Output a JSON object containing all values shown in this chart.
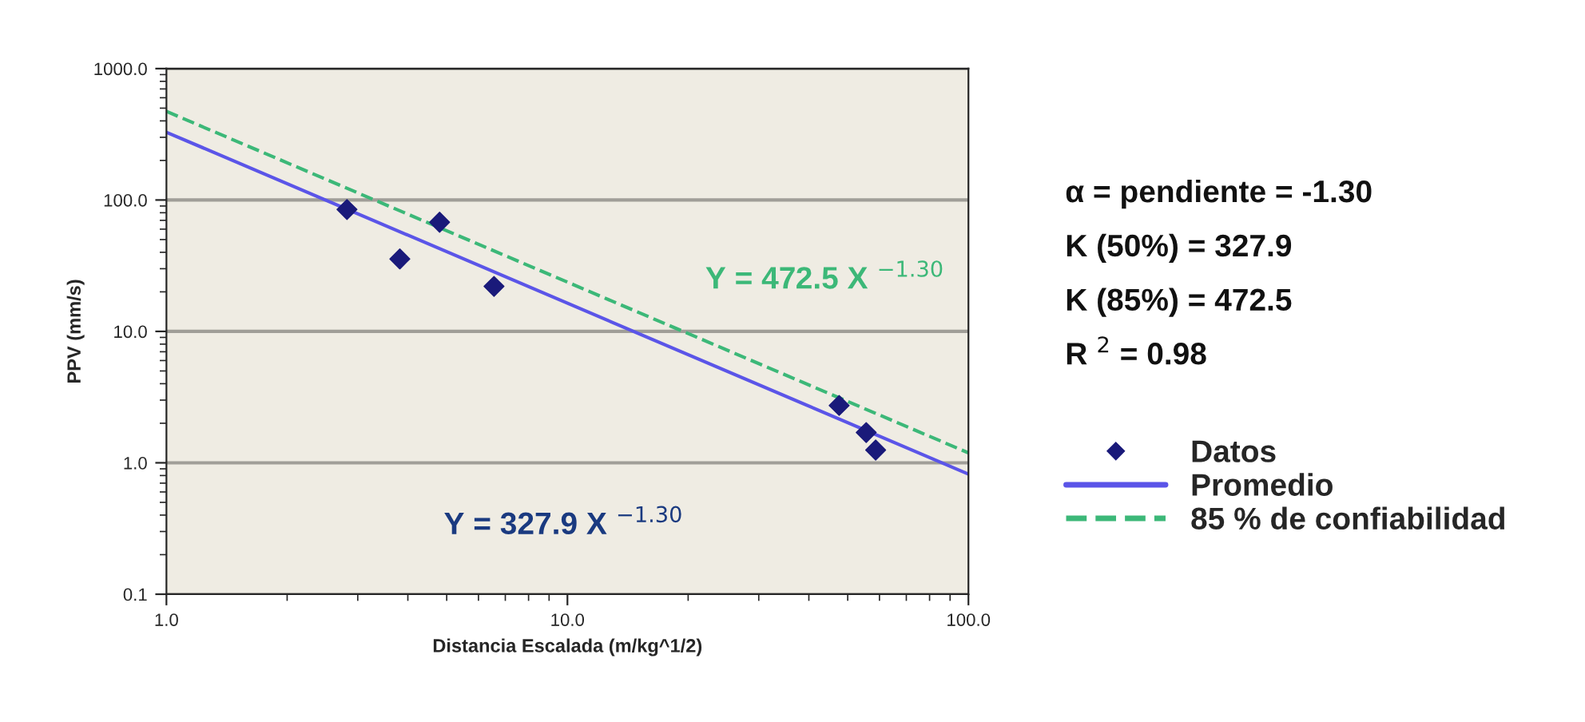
{
  "chart_data": {
    "type": "scatter",
    "xlabel": "Distancia Escalada (m/kg^1/2)",
    "ylabel": "PPV (mm/s)",
    "log": "xy",
    "grid": "y",
    "legend": "right",
    "xlim": [
      1,
      100
    ],
    "ylim": [
      0.1,
      1000
    ],
    "xticks": [
      {
        "value": 1,
        "label": "1.0"
      },
      {
        "value": 10,
        "label": "10.0"
      },
      {
        "value": 100,
        "label": "100.0"
      }
    ],
    "yticks": [
      {
        "value": 0.1,
        "label": "0.1"
      },
      {
        "value": 1,
        "label": "1.0"
      },
      {
        "value": 10,
        "label": "10.0"
      },
      {
        "value": 100,
        "label": "100.0"
      },
      {
        "value": 1000,
        "label": "1000.0"
      }
    ],
    "series": [
      {
        "name": "Datos",
        "marker": "diamond",
        "color": "#1a1a7a",
        "x": [
          2.82,
          3.82,
          4.8,
          6.56,
          47.6,
          55.6,
          58.7
        ],
        "values": [
          84.6,
          35.6,
          67.7,
          22,
          2.73,
          1.7,
          1.25
        ]
      },
      {
        "name": "Promedio",
        "type": "line",
        "color": "#5b55e8",
        "line_style": "solid",
        "marker": "none",
        "x": [
          1,
          100
        ],
        "values": [
          327.9,
          0.82
        ]
      },
      {
        "name": "85 % de confiabilidad",
        "type": "line",
        "color": "#3cb878",
        "line_style": "dashed",
        "marker": "none",
        "x": [
          1,
          100
        ],
        "values": [
          472.5,
          1.19
        ]
      }
    ],
    "annotations": [
      "Y = 472.5 X $^{−1.30}$",
      "Y = 327.9 X $^{−1.30}$",
      "α = pendiente = -1.30",
      "K (50%) = 327.9",
      "K (85%) = 472.5",
      "R $^{2}$ = 0.98"
    ]
  }
}
